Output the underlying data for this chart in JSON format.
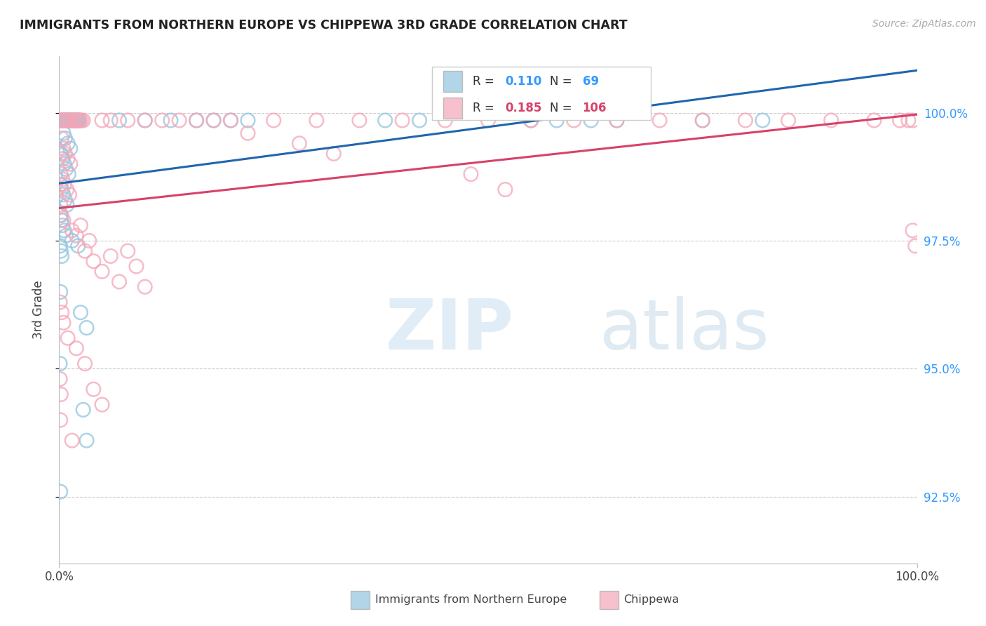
{
  "title": "IMMIGRANTS FROM NORTHERN EUROPE VS CHIPPEWA 3RD GRADE CORRELATION CHART",
  "source": "Source: ZipAtlas.com",
  "ylabel": "3rd Grade",
  "x_min": 0.0,
  "x_max": 100.0,
  "y_min": 91.2,
  "y_max": 101.1,
  "y_ticks": [
    92.5,
    95.0,
    97.5,
    100.0
  ],
  "blue_color": "#92c5de",
  "pink_color": "#f4a6b8",
  "blue_line_color": "#2166ac",
  "pink_line_color": "#d6426a",
  "watermark_zip": "ZIP",
  "watermark_atlas": "atlas",
  "blue_points": [
    [
      0.15,
      99.85
    ],
    [
      0.25,
      99.85
    ],
    [
      0.35,
      99.85
    ],
    [
      0.45,
      99.85
    ],
    [
      0.55,
      99.85
    ],
    [
      0.65,
      99.85
    ],
    [
      0.75,
      99.85
    ],
    [
      0.85,
      99.85
    ],
    [
      0.95,
      99.85
    ],
    [
      1.05,
      99.85
    ],
    [
      1.15,
      99.85
    ],
    [
      1.25,
      99.85
    ],
    [
      1.35,
      99.85
    ],
    [
      1.45,
      99.85
    ],
    [
      1.55,
      99.85
    ],
    [
      1.65,
      99.85
    ],
    [
      1.75,
      99.85
    ],
    [
      1.85,
      99.85
    ],
    [
      1.95,
      99.85
    ],
    [
      2.05,
      99.85
    ],
    [
      2.15,
      99.85
    ],
    [
      2.25,
      99.85
    ],
    [
      2.35,
      99.85
    ],
    [
      0.5,
      99.6
    ],
    [
      0.7,
      99.5
    ],
    [
      1.0,
      99.4
    ],
    [
      1.3,
      99.3
    ],
    [
      0.2,
      99.2
    ],
    [
      0.4,
      99.1
    ],
    [
      0.6,
      99.0
    ],
    [
      0.8,
      98.9
    ],
    [
      1.1,
      98.8
    ],
    [
      0.15,
      98.6
    ],
    [
      0.3,
      98.5
    ],
    [
      0.5,
      98.4
    ],
    [
      0.7,
      98.3
    ],
    [
      0.9,
      98.2
    ],
    [
      0.15,
      98.0
    ],
    [
      0.25,
      97.9
    ],
    [
      0.4,
      97.8
    ],
    [
      0.6,
      97.7
    ],
    [
      0.8,
      97.6
    ],
    [
      0.1,
      97.4
    ],
    [
      0.2,
      97.3
    ],
    [
      0.3,
      97.2
    ],
    [
      1.5,
      97.5
    ],
    [
      2.2,
      97.4
    ],
    [
      0.15,
      96.5
    ],
    [
      2.5,
      96.1
    ],
    [
      3.2,
      95.8
    ],
    [
      0.1,
      95.1
    ],
    [
      2.8,
      94.2
    ],
    [
      3.2,
      93.6
    ],
    [
      0.15,
      92.6
    ],
    [
      7.0,
      99.85
    ],
    [
      10.0,
      99.85
    ],
    [
      13.0,
      99.85
    ],
    [
      16.0,
      99.85
    ],
    [
      18.0,
      99.85
    ],
    [
      20.0,
      99.85
    ],
    [
      22.0,
      99.85
    ],
    [
      38.0,
      99.85
    ],
    [
      42.0,
      99.85
    ],
    [
      55.0,
      99.85
    ],
    [
      58.0,
      99.85
    ],
    [
      62.0,
      99.85
    ],
    [
      65.0,
      99.85
    ],
    [
      75.0,
      99.85
    ],
    [
      82.0,
      99.85
    ]
  ],
  "pink_points": [
    [
      0.2,
      99.85
    ],
    [
      0.4,
      99.85
    ],
    [
      0.6,
      99.85
    ],
    [
      0.8,
      99.85
    ],
    [
      1.0,
      99.85
    ],
    [
      1.2,
      99.85
    ],
    [
      1.4,
      99.85
    ],
    [
      1.6,
      99.85
    ],
    [
      1.8,
      99.85
    ],
    [
      2.0,
      99.85
    ],
    [
      2.2,
      99.85
    ],
    [
      2.4,
      99.85
    ],
    [
      2.6,
      99.85
    ],
    [
      2.8,
      99.85
    ],
    [
      5.0,
      99.85
    ],
    [
      6.0,
      99.85
    ],
    [
      8.0,
      99.85
    ],
    [
      10.0,
      99.85
    ],
    [
      12.0,
      99.85
    ],
    [
      14.0,
      99.85
    ],
    [
      16.0,
      99.85
    ],
    [
      18.0,
      99.85
    ],
    [
      20.0,
      99.85
    ],
    [
      25.0,
      99.85
    ],
    [
      30.0,
      99.85
    ],
    [
      35.0,
      99.85
    ],
    [
      40.0,
      99.85
    ],
    [
      45.0,
      99.85
    ],
    [
      50.0,
      99.85
    ],
    [
      55.0,
      99.85
    ],
    [
      60.0,
      99.85
    ],
    [
      65.0,
      99.85
    ],
    [
      70.0,
      99.85
    ],
    [
      75.0,
      99.85
    ],
    [
      80.0,
      99.85
    ],
    [
      85.0,
      99.85
    ],
    [
      90.0,
      99.85
    ],
    [
      95.0,
      99.85
    ],
    [
      98.0,
      99.85
    ],
    [
      99.0,
      99.85
    ],
    [
      99.5,
      99.85
    ],
    [
      0.3,
      99.5
    ],
    [
      0.5,
      99.3
    ],
    [
      0.7,
      99.2
    ],
    [
      1.0,
      99.1
    ],
    [
      1.3,
      99.0
    ],
    [
      0.2,
      98.8
    ],
    [
      0.4,
      98.7
    ],
    [
      0.6,
      98.6
    ],
    [
      0.9,
      98.5
    ],
    [
      1.2,
      98.4
    ],
    [
      0.15,
      98.2
    ],
    [
      0.25,
      98.0
    ],
    [
      0.5,
      97.9
    ],
    [
      1.5,
      97.7
    ],
    [
      2.0,
      97.6
    ],
    [
      2.5,
      97.8
    ],
    [
      3.0,
      97.3
    ],
    [
      3.5,
      97.5
    ],
    [
      4.0,
      97.1
    ],
    [
      5.0,
      96.9
    ],
    [
      6.0,
      97.2
    ],
    [
      7.0,
      96.7
    ],
    [
      8.0,
      97.3
    ],
    [
      9.0,
      97.0
    ],
    [
      10.0,
      96.6
    ],
    [
      0.1,
      96.3
    ],
    [
      0.3,
      96.1
    ],
    [
      0.5,
      95.9
    ],
    [
      1.0,
      95.6
    ],
    [
      2.0,
      95.4
    ],
    [
      3.0,
      95.1
    ],
    [
      0.1,
      94.8
    ],
    [
      0.2,
      94.5
    ],
    [
      4.0,
      94.6
    ],
    [
      5.0,
      94.3
    ],
    [
      0.15,
      94.0
    ],
    [
      1.5,
      93.6
    ],
    [
      22.0,
      99.6
    ],
    [
      28.0,
      99.4
    ],
    [
      32.0,
      99.2
    ],
    [
      99.5,
      97.7
    ],
    [
      99.8,
      97.4
    ],
    [
      48.0,
      98.8
    ],
    [
      52.0,
      98.5
    ]
  ]
}
